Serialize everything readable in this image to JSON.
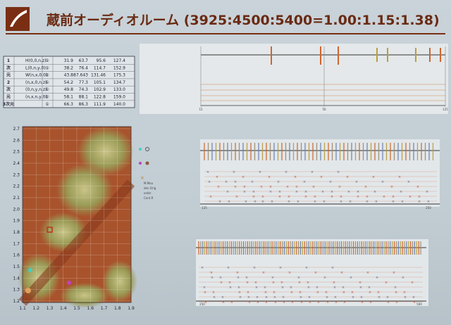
{
  "header": {
    "title": "蔵前オーディオルーム (3925:4500:5400=1.00:1.15:1.38)"
  },
  "table": {
    "rows": [
      [
        "1",
        "H(0,0,n,z)",
        "①",
        "31.9",
        "63.7",
        "95.6",
        "127.4"
      ],
      [
        "次",
        "L(0,n,y,0)",
        "①",
        "38.2",
        "76.4",
        "114.7",
        "152.9"
      ],
      [
        "元",
        "W(n,x,0,0)",
        "①",
        "43.8",
        "87.643",
        "131.46",
        "175.3"
      ],
      [
        "2",
        "(n,x,0,n,z)",
        "①",
        "54.2",
        "77.3",
        "105.1",
        "134.7"
      ],
      [
        "次",
        "(0,n,y,n,z)",
        "①",
        "49.8",
        "74.3",
        "102.9",
        "133.0"
      ],
      [
        "元",
        "(n,x,n,y,0)",
        "①",
        "58.1",
        "88.1",
        "122.8",
        "159.0"
      ],
      [
        "3次元",
        "",
        "①",
        "66.3",
        "86.3",
        "111.9",
        "140.0"
      ]
    ]
  },
  "contour": {
    "y_ticks": [
      "2.7",
      "2.6",
      "2.5",
      "2.4",
      "2.3",
      "2.2",
      "2.1",
      "2.0",
      "1.9",
      "1.8",
      "1.7",
      "1.6",
      "1.5",
      "1.4",
      "1.3",
      "1.2"
    ],
    "x_ticks": [
      "1.1",
      "1.2",
      "1.3",
      "1.4",
      "1.5",
      "1.6",
      "1.7",
      "1.8",
      "1.9"
    ],
    "legend": [
      "M.Mau",
      "den Orig",
      "order",
      "Cont.R"
    ]
  },
  "spectra": {
    "top_x": [
      "15",
      "50",
      "125"
    ],
    "middle_x": [
      "125",
      "250"
    ],
    "bottom_x": [
      "250",
      "500"
    ]
  }
}
